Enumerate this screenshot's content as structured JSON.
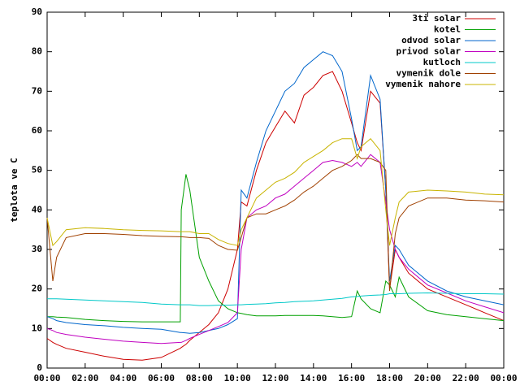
{
  "chart_data": {
    "type": "line",
    "ylabel": "teplota ve C",
    "x": [
      0,
      0.3,
      0.5,
      1,
      2,
      3,
      4,
      5,
      6,
      7,
      7.05,
      7.3,
      7.5,
      8,
      8.5,
      9,
      9.5,
      10,
      10.2,
      10.5,
      11,
      11.5,
      12,
      12.5,
      13,
      13.5,
      14,
      14.5,
      15,
      15.5,
      16,
      16.3,
      16.5,
      17,
      17.5,
      17.8,
      18,
      18.3,
      18.5,
      19,
      20,
      21,
      22,
      23,
      24
    ],
    "series": [
      {
        "name": "3ti solar",
        "color": "#cc0000",
        "values": [
          7.5,
          6.5,
          6,
          5,
          4,
          3,
          2.2,
          2,
          2.7,
          5,
          5.2,
          6,
          7,
          9,
          11,
          14,
          20,
          30,
          42,
          41,
          50,
          57,
          61,
          65,
          62,
          69,
          71,
          74,
          75,
          70,
          62,
          57,
          55,
          70,
          67,
          45,
          20,
          30,
          28,
          24,
          20,
          18,
          16,
          14,
          12
        ]
      },
      {
        "name": "kotel",
        "color": "#00a000",
        "values": [
          13,
          13,
          12.9,
          12.8,
          12.3,
          12,
          11.8,
          11.7,
          11.7,
          11.7,
          40,
          49,
          45,
          28,
          22,
          17,
          15,
          14,
          13.8,
          13.5,
          13.2,
          13.2,
          13.2,
          13.3,
          13.3,
          13.3,
          13.3,
          13.2,
          13,
          12.8,
          13,
          19.5,
          17.5,
          15,
          14,
          22,
          21,
          18,
          23,
          18,
          14.5,
          13.5,
          13,
          12.5,
          12
        ]
      },
      {
        "name": "odvod solar",
        "color": "#0066cc",
        "values": [
          13,
          12.5,
          12,
          11.5,
          11,
          10.7,
          10.3,
          10,
          9.8,
          9,
          9,
          8.9,
          8.8,
          9,
          9.5,
          10,
          11,
          12.5,
          45,
          43,
          52,
          60,
          65,
          70,
          72,
          76,
          78,
          80,
          79,
          75,
          63,
          55,
          56,
          74,
          68,
          45,
          22,
          31,
          30,
          26,
          22,
          19.5,
          18,
          17,
          16
        ]
      },
      {
        "name": "privod solar",
        "color": "#c000c0",
        "values": [
          10,
          9.5,
          9,
          8.5,
          7.8,
          7.3,
          6.8,
          6.5,
          6.2,
          6.5,
          6.5,
          7,
          7.5,
          8.5,
          9.5,
          10.5,
          11.5,
          14,
          30,
          38,
          40,
          41,
          43,
          44,
          46,
          48,
          50,
          52,
          52.5,
          52,
          51,
          52,
          51,
          54,
          52,
          42,
          35,
          30,
          28,
          25,
          21,
          19,
          17,
          15.5,
          14
        ]
      },
      {
        "name": "kutloch",
        "color": "#00c8c8",
        "values": [
          17.5,
          17.5,
          17.5,
          17.4,
          17.2,
          17,
          16.8,
          16.6,
          16.2,
          16,
          16,
          16,
          16,
          15.8,
          15.8,
          15.9,
          15.9,
          16,
          16,
          16.1,
          16.2,
          16.3,
          16.5,
          16.6,
          16.8,
          16.9,
          17,
          17.2,
          17.4,
          17.6,
          18,
          18.1,
          18.2,
          18.4,
          18.5,
          18.6,
          18.8,
          18.8,
          18.8,
          18.9,
          19,
          18.9,
          18.8,
          18.8,
          18.7
        ]
      },
      {
        "name": "vymenik dole",
        "color": "#a04000",
        "values": [
          38,
          22,
          28,
          33,
          34,
          34,
          33.8,
          33.5,
          33.3,
          33.2,
          33.2,
          33.1,
          33,
          33,
          32.8,
          31,
          30,
          29.8,
          33,
          38,
          39,
          39,
          40,
          41,
          42.5,
          44.5,
          46,
          48,
          50,
          51,
          52.5,
          54,
          53,
          53,
          52,
          50,
          19.5,
          34,
          38,
          41,
          43,
          43,
          42.5,
          42.3,
          42
        ]
      },
      {
        "name": "vymenik nahore",
        "color": "#c8b400",
        "values": [
          38,
          31,
          32,
          35,
          35.5,
          35.3,
          35,
          34.8,
          34.7,
          34.5,
          34.5,
          34.5,
          34.5,
          34,
          34,
          32.5,
          31.5,
          31,
          35,
          38,
          43,
          45,
          47,
          48,
          49.5,
          52,
          53.5,
          55,
          57,
          58,
          58,
          53,
          56,
          58,
          55,
          40,
          31,
          38,
          42,
          44.5,
          45,
          44.8,
          44.5,
          44,
          43.8
        ]
      }
    ],
    "xlim": [
      0,
      24
    ],
    "xticks": [
      {
        "value": 0,
        "label": "00:00"
      },
      {
        "value": 2,
        "label": "02:00"
      },
      {
        "value": 4,
        "label": "04:00"
      },
      {
        "value": 6,
        "label": "06:00"
      },
      {
        "value": 8,
        "label": "08:00"
      },
      {
        "value": 10,
        "label": "10:00"
      },
      {
        "value": 12,
        "label": "12:00"
      },
      {
        "value": 14,
        "label": "14:00"
      },
      {
        "value": 16,
        "label": "16:00"
      },
      {
        "value": 18,
        "label": "18:00"
      },
      {
        "value": 20,
        "label": "20:00"
      },
      {
        "value": 22,
        "label": "22:00"
      },
      {
        "value": 24,
        "label": "00:00"
      }
    ],
    "ylim": [
      0,
      90
    ],
    "yticks": [
      0,
      10,
      20,
      30,
      40,
      50,
      60,
      70,
      80,
      90
    ],
    "legend": "top-right"
  }
}
